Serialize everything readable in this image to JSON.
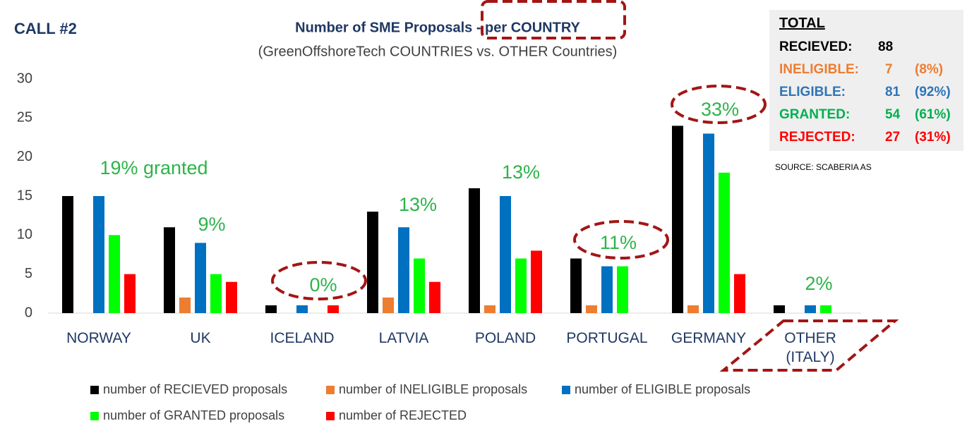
{
  "chart_data": {
    "type": "bar",
    "label": "CALL #2",
    "title": "Number of SME Proposals - per COUNTRY",
    "subtitle": "(GreenOffshoreTech COUNTRIES vs. OTHER Countries)",
    "categories": [
      "NORWAY",
      "UK",
      "ICELAND",
      "LATVIA",
      "POLAND",
      "PORTUGAL",
      "GERMANY",
      "OTHER (ITALY)"
    ],
    "series": [
      {
        "name": "number of RECIEVED proposals",
        "color": "#000000",
        "values": [
          15,
          11,
          1,
          13,
          16,
          7,
          24,
          1
        ]
      },
      {
        "name": "number of INELIGIBLE proposals",
        "color": "#ed7d31",
        "values": [
          0,
          2,
          0,
          2,
          1,
          1,
          1,
          0
        ]
      },
      {
        "name": "number of ELIGIBLE proposals",
        "color": "#0070c0",
        "values": [
          15,
          9,
          1,
          11,
          15,
          6,
          23,
          1
        ]
      },
      {
        "name": "number of GRANTED proposals",
        "color": "#00ff00",
        "values": [
          10,
          5,
          0,
          7,
          7,
          6,
          18,
          1
        ]
      },
      {
        "name": "number of REJECTED",
        "color": "#ff0000",
        "values": [
          5,
          4,
          1,
          4,
          8,
          0,
          5,
          0
        ]
      }
    ],
    "annotations": [
      "19% granted",
      "9%",
      "0%",
      "13%",
      "13%",
      "11%",
      "33%",
      "2%"
    ],
    "ylim": [
      0,
      30
    ],
    "yticks": [
      0,
      5,
      10,
      15,
      20,
      25,
      30
    ],
    "grid": false,
    "totals": {
      "title": "TOTAL",
      "rows": [
        {
          "label": "RECIEVED:",
          "value": 88,
          "color": "#000000"
        },
        {
          "label": "INELIGIBLE:",
          "value": 7,
          "share": "(8%)",
          "color": "#ed7d31"
        },
        {
          "label": "ELIGIBLE:",
          "value": 81,
          "share": "(92%)",
          "color": "#2e75b6"
        },
        {
          "label": "GRANTED:",
          "value": 54,
          "share": "(61%)",
          "color": "#00b050"
        },
        {
          "label": "REJECTED:",
          "value": 27,
          "share": "(31%)",
          "color": "#ff0000"
        }
      ]
    },
    "source": "SOURCE: SCABERIA AS"
  }
}
